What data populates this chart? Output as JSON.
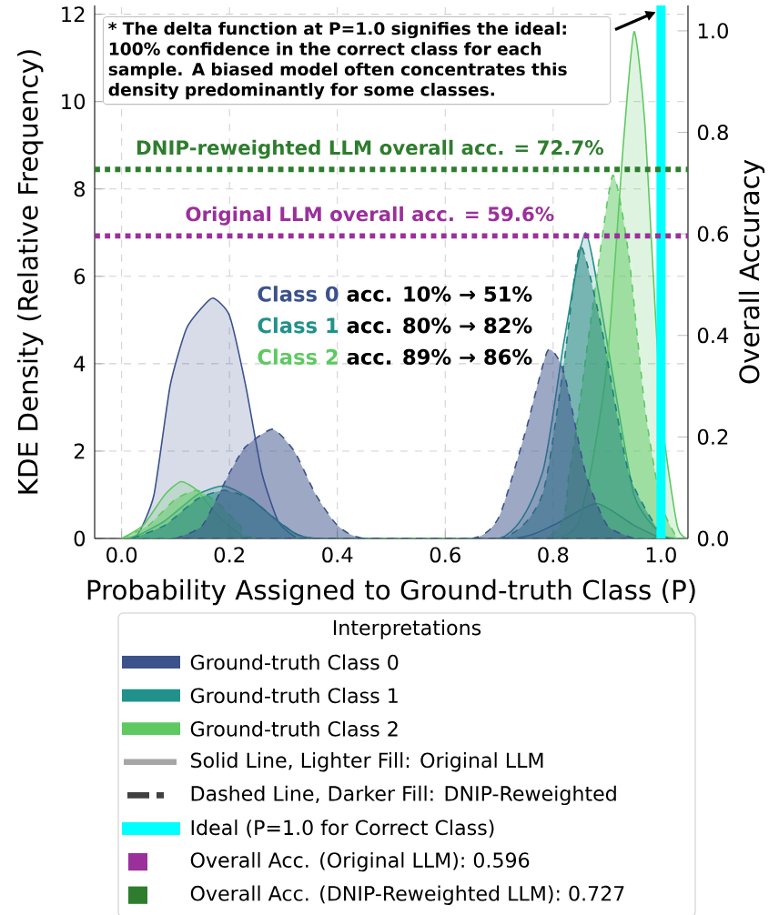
{
  "chart_data": {
    "type": "area",
    "xlabel": "Probability Assigned to Ground-truth Class (P)",
    "ylabel": "KDE Density (Relative Frequency)",
    "y2label": "Overall Accuracy",
    "legend_title": "Interpretations",
    "legend": "bottom",
    "grid": true,
    "xlim": [
      -0.05,
      1.05
    ],
    "ylim": [
      0,
      12.2
    ],
    "y2lim": [
      0,
      1.05
    ],
    "xticks": [
      {
        "value": 0,
        "label": "0.0"
      },
      {
        "value": 0.2,
        "label": "0.2"
      },
      {
        "value": 0.4,
        "label": "0.4"
      },
      {
        "value": 0.6,
        "label": "0.6"
      },
      {
        "value": 0.8,
        "label": "0.8"
      },
      {
        "value": 1,
        "label": "1.0"
      }
    ],
    "yticks": [
      0,
      2,
      4,
      6,
      8,
      10,
      12
    ],
    "y2ticks": [
      {
        "value": 0,
        "label": "0.0"
      },
      {
        "value": 0.2,
        "label": "0.2"
      },
      {
        "value": 0.4,
        "label": "0.4"
      },
      {
        "value": 0.6,
        "label": "0.6"
      },
      {
        "value": 0.8,
        "label": "0.8"
      },
      {
        "value": 1,
        "label": "1.0"
      }
    ],
    "series": [
      {
        "name": "Ground-truth Class 0",
        "color": "#3b528b",
        "line_style": "solid",
        "x": [
          0.0,
          0.03,
          0.06,
          0.09,
          0.12,
          0.15,
          0.17,
          0.2,
          0.23,
          0.26,
          0.29,
          0.32,
          0.35,
          0.72,
          0.8,
          0.88,
          0.95,
          1.0
        ],
        "values": [
          0,
          0.1,
          1.0,
          3.5,
          4.8,
          5.3,
          5.5,
          5.1,
          3.5,
          1.5,
          0.4,
          0.05,
          0,
          0,
          0.3,
          0.8,
          0.3,
          0
        ]
      },
      {
        "name": "Ground-truth Class 1",
        "color": "#21918c",
        "line_style": "solid",
        "x": [
          0.02,
          0.08,
          0.14,
          0.19,
          0.24,
          0.3,
          0.36,
          0.7,
          0.78,
          0.82,
          0.86,
          0.9,
          0.95,
          1.0,
          1.03
        ],
        "values": [
          0,
          0.4,
          1.0,
          1.2,
          0.9,
          0.3,
          0,
          0,
          1.5,
          4.5,
          7.0,
          4.5,
          1.0,
          0.1,
          0
        ]
      },
      {
        "name": "Ground-truth Class 2",
        "color": "#5ec962",
        "line_style": "solid",
        "x": [
          0.0,
          0.04,
          0.08,
          0.11,
          0.14,
          0.18,
          0.22,
          0.26,
          0.8,
          0.86,
          0.9,
          0.93,
          0.95,
          0.97,
          1.0,
          1.03,
          1.05
        ],
        "values": [
          0,
          0.3,
          1.0,
          1.3,
          1.1,
          0.5,
          0.1,
          0,
          0,
          1.0,
          4.0,
          9.0,
          11.6,
          9.5,
          3.0,
          0.3,
          0
        ]
      },
      {
        "color": "#3b528b",
        "line_style": "dashed",
        "x": [
          0.1,
          0.15,
          0.2,
          0.23,
          0.28,
          0.32,
          0.36,
          0.4,
          0.45,
          0.65,
          0.7,
          0.75,
          0.79,
          0.82,
          0.86,
          0.9,
          0.95
        ],
        "values": [
          0,
          0.3,
          1.5,
          2.1,
          2.5,
          2.0,
          1.0,
          0.3,
          0,
          0,
          0.5,
          2.5,
          4.3,
          3.8,
          1.5,
          0.3,
          0
        ]
      },
      {
        "color": "#1c827e",
        "line_style": "dashed",
        "x": [
          0.02,
          0.08,
          0.14,
          0.19,
          0.24,
          0.3,
          0.36,
          0.7,
          0.78,
          0.82,
          0.85,
          0.89,
          0.94,
          1.0,
          1.03
        ],
        "values": [
          0,
          0.3,
          0.9,
          1.1,
          0.9,
          0.3,
          0,
          0,
          1.0,
          4.0,
          6.7,
          4.8,
          1.5,
          0.1,
          0
        ]
      },
      {
        "color": "#5ec962",
        "line_style": "dashed",
        "x": [
          0.0,
          0.05,
          0.1,
          0.14,
          0.18,
          0.22,
          0.26,
          0.78,
          0.83,
          0.87,
          0.91,
          0.94,
          0.97,
          1.0,
          1.03
        ],
        "values": [
          0,
          0.3,
          0.9,
          1.1,
          0.8,
          0.3,
          0,
          0,
          1.5,
          5.0,
          8.3,
          6.5,
          3.0,
          0.8,
          0
        ]
      }
    ],
    "ref_lines": [
      {
        "axis": "x",
        "value": 1.0,
        "label": "Ideal (P=1.0 for Correct Class)",
        "color": "#00ffff",
        "line_style": "solid"
      },
      {
        "axis": "y2",
        "value": 0.596,
        "label": "Original LLM overall acc. = 59.6%",
        "color": "#9b309b",
        "line_style": "dotted"
      },
      {
        "axis": "y2",
        "value": 0.727,
        "label": "DNIP-reweighted LLM overall acc. = 72.7%",
        "color": "#2e7d2e",
        "line_style": "dotted"
      }
    ],
    "annotations": [
      "* The delta function at P=1.0 signifies the ideal: 100% confidence in the correct class for each sample. A biased model often concentrates this density predominantly for some classes.",
      "Class 0",
      "acc. 10% → 51%",
      "Class 1",
      "acc. 80% → 82%",
      "Class 2",
      "acc. 89% → 86%",
      "Solid Line, Lighter Fill: Original LLM",
      "Dashed Line, Darker Fill: DNIP-Reweighted",
      "Overall Acc. (Original LLM): 0.596",
      "Overall Acc. (DNIP-Reweighted LLM): 0.727"
    ]
  }
}
